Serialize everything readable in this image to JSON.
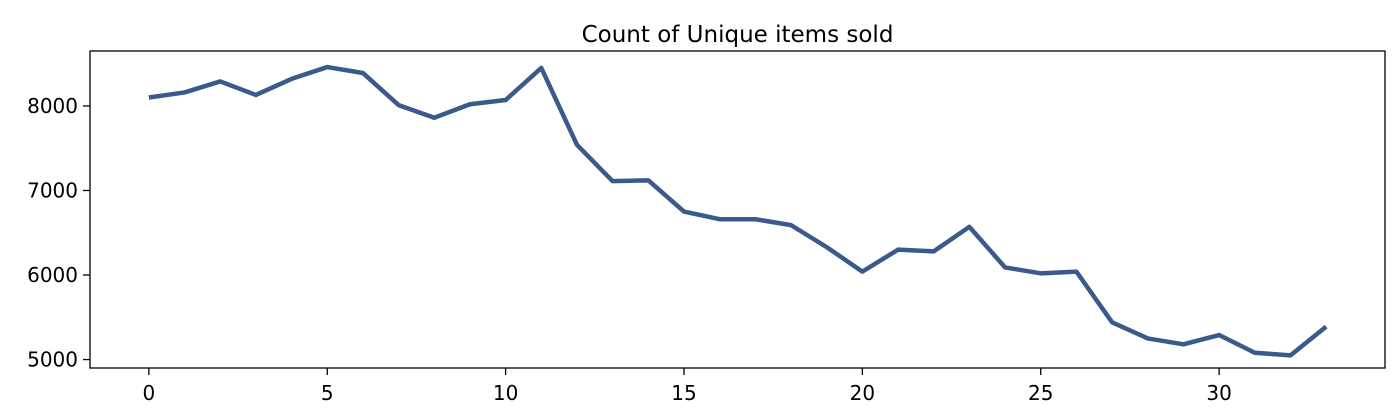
{
  "chart_data": {
    "type": "line",
    "title": "Count of Unique items sold",
    "xlabel": "",
    "ylabel": "",
    "xlim": [
      -1.65,
      34.65
    ],
    "ylim": [
      4900,
      8650
    ],
    "x_ticks": [
      0,
      5,
      10,
      15,
      20,
      25,
      30
    ],
    "y_ticks": [
      5000,
      6000,
      7000,
      8000
    ],
    "grid": false,
    "legend": "none",
    "line_color": "#3a5a8c",
    "series": [
      {
        "x": [
          0,
          1,
          2,
          3,
          4,
          5,
          6,
          7,
          8,
          9,
          10,
          11,
          12,
          13,
          14,
          15,
          16,
          17,
          18,
          19,
          20,
          21,
          22,
          23,
          24,
          25,
          26,
          27,
          28,
          29,
          30,
          31,
          32,
          33
        ],
        "values": [
          8100,
          8160,
          8290,
          8130,
          8320,
          8460,
          8390,
          8010,
          7860,
          8020,
          8070,
          8450,
          7540,
          7110,
          7120,
          6750,
          6660,
          6660,
          6590,
          6330,
          6040,
          6300,
          6280,
          6570,
          6090,
          6020,
          6040,
          5440,
          5250,
          5180,
          5290,
          5080,
          5050,
          5390
        ]
      }
    ]
  }
}
